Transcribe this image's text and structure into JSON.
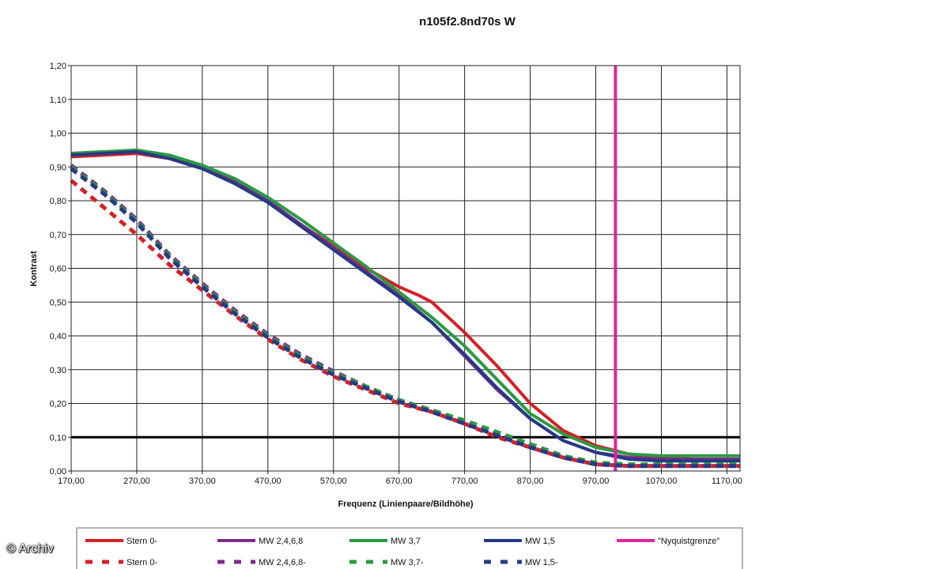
{
  "chart_data": {
    "type": "line",
    "title": "n105f2.8nd70s W",
    "xlabel": "Frequenz (Linienpaare/Bildhöhe)",
    "ylabel": "Kontrast",
    "xlim": [
      170,
      1190
    ],
    "ylim": [
      0,
      1.2
    ],
    "x_ticks": [
      "170,00",
      "270,00",
      "370,00",
      "470,00",
      "570,00",
      "670,00",
      "770,00",
      "870,00",
      "970,00",
      "1070,00",
      "1170,00"
    ],
    "y_ticks": [
      "0,00",
      "0,10",
      "0,20",
      "0,30",
      "0,40",
      "0,50",
      "0,60",
      "0,70",
      "0,80",
      "0,90",
      "1,00",
      "1,10",
      "1,20"
    ],
    "grid": true,
    "reference_line_y": 0.1,
    "nyquist_x": 1000,
    "legend_position": "bottom",
    "series": [
      {
        "name": "Stern 0-",
        "color": "#d42027",
        "style": "solid",
        "x": [
          170,
          220,
          270,
          320,
          370,
          420,
          470,
          520,
          570,
          620,
          670,
          700,
          720,
          770,
          820,
          870,
          920,
          970,
          1020,
          1070,
          1120,
          1190
        ],
        "y": [
          0.93,
          0.935,
          0.94,
          0.925,
          0.9,
          0.86,
          0.8,
          0.73,
          0.665,
          0.6,
          0.545,
          0.52,
          0.5,
          0.41,
          0.31,
          0.2,
          0.12,
          0.075,
          0.05,
          0.04,
          0.035,
          0.035
        ]
      },
      {
        "name": "MW 2,4,6,8",
        "color": "#7f2a8c",
        "style": "solid",
        "x": [
          170,
          220,
          270,
          320,
          370,
          420,
          470,
          520,
          570,
          620,
          670,
          720,
          770,
          820,
          870,
          920,
          970,
          1020,
          1070,
          1120,
          1190
        ],
        "y": [
          0.94,
          0.945,
          0.945,
          0.925,
          0.895,
          0.855,
          0.8,
          0.73,
          0.66,
          0.59,
          0.52,
          0.44,
          0.34,
          0.24,
          0.155,
          0.09,
          0.055,
          0.04,
          0.035,
          0.035,
          0.035
        ]
      },
      {
        "name": "MW 3,7",
        "color": "#2b9a43",
        "style": "solid",
        "x": [
          170,
          220,
          270,
          320,
          370,
          420,
          470,
          520,
          570,
          620,
          670,
          720,
          770,
          820,
          870,
          920,
          970,
          1020,
          1070,
          1120,
          1190
        ],
        "y": [
          0.94,
          0.945,
          0.95,
          0.935,
          0.905,
          0.865,
          0.81,
          0.745,
          0.675,
          0.605,
          0.53,
          0.455,
          0.37,
          0.27,
          0.17,
          0.11,
          0.07,
          0.05,
          0.045,
          0.045,
          0.045
        ]
      },
      {
        "name": "MW 1,5",
        "color": "#273985",
        "style": "solid",
        "x": [
          170,
          220,
          270,
          320,
          370,
          420,
          470,
          520,
          570,
          620,
          670,
          720,
          770,
          820,
          870,
          920,
          970,
          1020,
          1070,
          1120,
          1190
        ],
        "y": [
          0.935,
          0.94,
          0.945,
          0.925,
          0.895,
          0.85,
          0.795,
          0.725,
          0.655,
          0.585,
          0.515,
          0.44,
          0.345,
          0.245,
          0.155,
          0.09,
          0.055,
          0.035,
          0.03,
          0.03,
          0.03
        ]
      },
      {
        "name": "\"Nyquistgrenze\"",
        "color": "#e0249a",
        "style": "solid",
        "x": [
          1000,
          1000
        ],
        "y": [
          0,
          1.2
        ]
      },
      {
        "name": "Stern 0-",
        "color": "#d42027",
        "style": "dashed",
        "x": [
          170,
          220,
          270,
          320,
          370,
          420,
          470,
          520,
          570,
          620,
          670,
          720,
          770,
          820,
          870,
          920,
          970,
          1020,
          1070,
          1120,
          1190
        ],
        "y": [
          0.86,
          0.78,
          0.7,
          0.61,
          0.535,
          0.46,
          0.39,
          0.33,
          0.28,
          0.24,
          0.2,
          0.175,
          0.14,
          0.1,
          0.07,
          0.04,
          0.02,
          0.015,
          0.015,
          0.015,
          0.015
        ]
      },
      {
        "name": "MW 2,4,6,8-",
        "color": "#7f2a8c",
        "style": "dashed",
        "x": [
          170,
          220,
          270,
          320,
          370,
          420,
          470,
          520,
          570,
          620,
          670,
          720,
          770,
          820,
          870,
          920,
          970,
          1020,
          1070,
          1120,
          1190
        ],
        "y": [
          0.905,
          0.83,
          0.745,
          0.64,
          0.555,
          0.475,
          0.405,
          0.345,
          0.295,
          0.25,
          0.21,
          0.18,
          0.145,
          0.11,
          0.075,
          0.04,
          0.02,
          0.015,
          0.015,
          0.015,
          0.015
        ]
      },
      {
        "name": "MW 3,7-",
        "color": "#2b9a43",
        "style": "dashed",
        "x": [
          170,
          220,
          270,
          320,
          370,
          420,
          470,
          520,
          570,
          620,
          670,
          720,
          770,
          820,
          870,
          920,
          970,
          1020,
          1070,
          1120,
          1190
        ],
        "y": [
          0.9,
          0.825,
          0.74,
          0.635,
          0.55,
          0.47,
          0.4,
          0.34,
          0.29,
          0.25,
          0.21,
          0.18,
          0.15,
          0.115,
          0.08,
          0.045,
          0.025,
          0.02,
          0.02,
          0.02,
          0.02
        ]
      },
      {
        "name": "MW 1,5-",
        "color": "#273985",
        "style": "dashed",
        "x": [
          170,
          220,
          270,
          320,
          370,
          420,
          470,
          520,
          570,
          620,
          670,
          720,
          770,
          820,
          870,
          920,
          970,
          1020,
          1070,
          1120,
          1190
        ],
        "y": [
          0.895,
          0.82,
          0.735,
          0.63,
          0.545,
          0.465,
          0.395,
          0.335,
          0.285,
          0.245,
          0.205,
          0.175,
          0.14,
          0.105,
          0.07,
          0.04,
          0.02,
          0.015,
          0.015,
          0.015,
          0.015
        ]
      }
    ]
  },
  "watermark": "© Archiv"
}
